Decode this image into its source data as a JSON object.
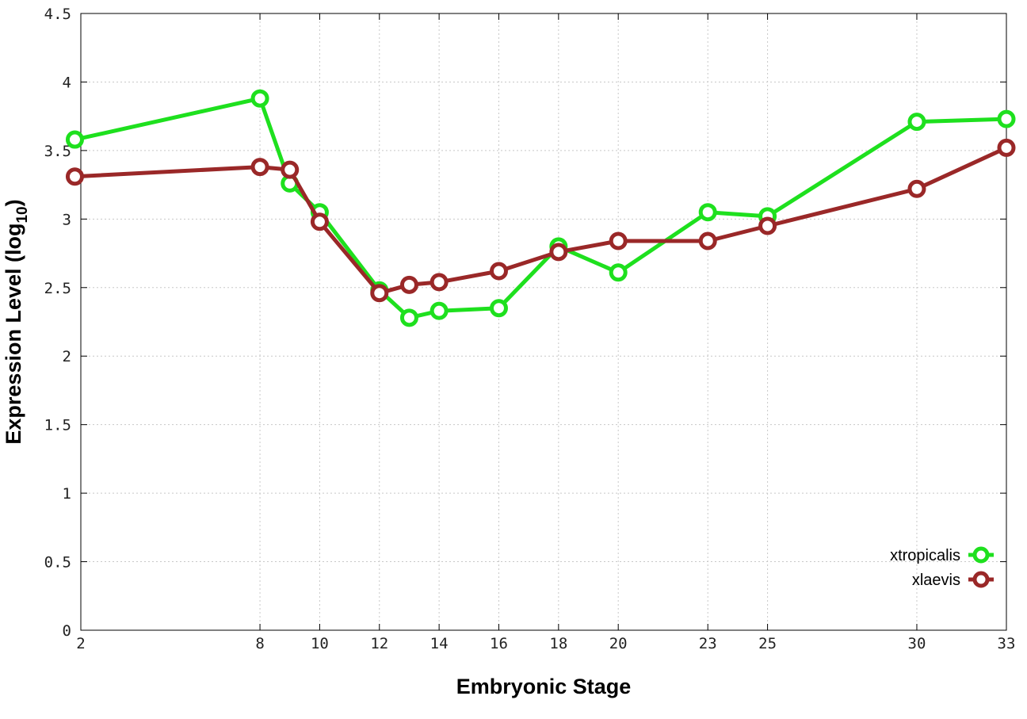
{
  "chart_data": {
    "type": "line",
    "title": "",
    "xlabel": "Embryonic Stage",
    "ylabel_main": "Expression Level (log",
    "ylabel_sub": "10",
    "ylabel_close": ")",
    "x_ticks": [
      "2",
      "8",
      "10",
      "12",
      "14",
      "16",
      "18",
      "20",
      "23",
      "25",
      "30",
      "33"
    ],
    "y_ticks": [
      "0",
      "0.5",
      "1",
      "1.5",
      "2",
      "2.5",
      "3",
      "3.5",
      "4",
      "4.5"
    ],
    "xlim": [
      2,
      33
    ],
    "ylim": [
      0,
      4.5
    ],
    "x_scale": "linear",
    "grid": true,
    "legend_position": "bottom-right",
    "series": [
      {
        "name": "xtropicalis",
        "color": "#1ee01e",
        "marker": "open-circle",
        "points": [
          [
            1.8,
            3.58
          ],
          [
            8,
            3.88
          ],
          [
            9,
            3.26
          ],
          [
            10,
            3.05
          ],
          [
            12,
            2.48
          ],
          [
            13,
            2.28
          ],
          [
            14,
            2.33
          ],
          [
            16,
            2.35
          ],
          [
            18,
            2.8
          ],
          [
            20,
            2.61
          ],
          [
            23,
            3.05
          ],
          [
            25,
            3.02
          ],
          [
            30,
            3.71
          ],
          [
            33,
            3.73
          ]
        ]
      },
      {
        "name": "xlaevis",
        "color": "#9a2828",
        "marker": "open-circle",
        "points": [
          [
            1.8,
            3.31
          ],
          [
            8,
            3.38
          ],
          [
            9,
            3.36
          ],
          [
            10,
            2.98
          ],
          [
            12,
            2.46
          ],
          [
            13,
            2.52
          ],
          [
            14,
            2.54
          ],
          [
            16,
            2.62
          ],
          [
            18,
            2.76
          ],
          [
            20,
            2.84
          ],
          [
            23,
            2.84
          ],
          [
            25,
            2.95
          ],
          [
            30,
            3.22
          ],
          [
            33,
            3.52
          ]
        ]
      }
    ]
  }
}
